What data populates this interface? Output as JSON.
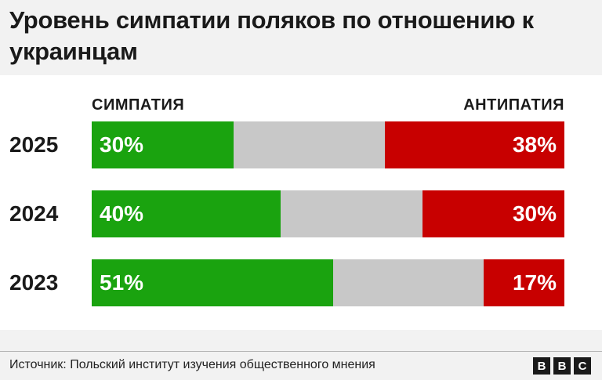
{
  "chart_data": {
    "type": "bar",
    "stacked": true,
    "orientation": "horizontal",
    "title": "Уровень симпатии поляков по отношению к украинцам",
    "legend": {
      "left": "СИМПАТИЯ",
      "right": "АНТИПАТИЯ"
    },
    "categories": [
      "2025",
      "2024",
      "2023"
    ],
    "series": [
      {
        "name": "СИМПАТИЯ",
        "values": [
          30,
          40,
          51
        ],
        "labels": [
          "30%",
          "40%",
          "51%"
        ],
        "color": "#1aa30f"
      },
      {
        "values": [
          32,
          30,
          32
        ],
        "color": "#c8c8c8"
      },
      {
        "name": "АНТИПАТИЯ",
        "values": [
          38,
          30,
          17
        ],
        "labels": [
          "38%",
          "30%",
          "17%"
        ],
        "color": "#c80000"
      }
    ],
    "xlim": [
      0,
      100
    ]
  },
  "footer": {
    "source": "Источник: Польский институт изучения общественного мнения",
    "logo": [
      "B",
      "B",
      "C"
    ]
  }
}
